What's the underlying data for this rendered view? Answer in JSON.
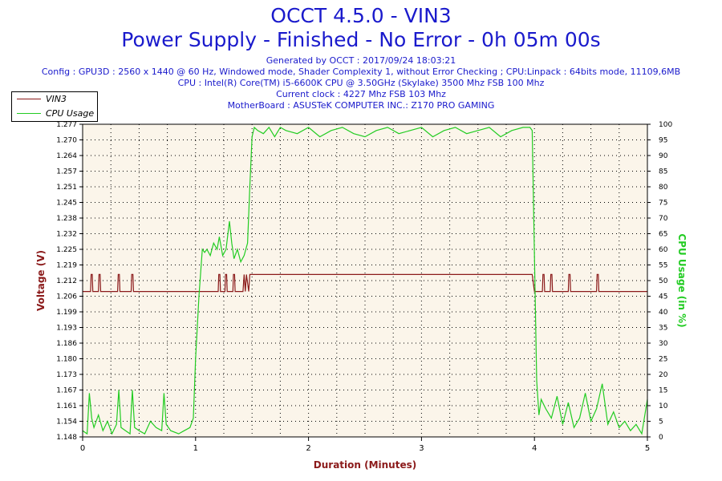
{
  "header": {
    "title": "OCCT 4.5.0 - VIN3",
    "subtitle": "Power Supply - Finished - No Error - 0h 05m 00s",
    "info_lines": [
      "Generated by OCCT : 2017/09/24 18:03:21",
      "Config : GPU3D : 2560 x 1440 @ 60 Hz, Windowed mode, Shader Complexity 1, without Error Checking ; CPU:Linpack : 64bits mode, 11109,6MB",
      "CPU : Intel(R) Core(TM) i5-6600K CPU @ 3.50GHz (Skylake) 3500 Mhz FSB 100 Mhz",
      "Current clock : 4227 Mhz FSB 103 Mhz",
      "MotherBoard : ASUSTeK COMPUTER INC.: Z170 PRO GAMING"
    ]
  },
  "colors": {
    "title": "#1a1acc",
    "vin3": "#8b1a1a",
    "cpu": "#22cc22",
    "plot_bg": "#fbf5ea",
    "axis_label_left": "#8b1a1a",
    "axis_label_right": "#22cc22"
  },
  "chart_data": {
    "type": "line",
    "xlabel": "Duration (Minutes)",
    "ylabel_left": "Voltage (V)",
    "ylabel_right": "CPU Usage (in %)",
    "xlim": [
      0,
      5
    ],
    "ylim_left": [
      1.148,
      1.277
    ],
    "ylim_right": [
      0,
      100
    ],
    "x_ticks": [
      "0",
      "1",
      "2",
      "3",
      "4",
      "5"
    ],
    "y_left_ticks": [
      "1.148",
      "1.154",
      "1.161",
      "1.167",
      "1.173",
      "1.180",
      "1.186",
      "1.193",
      "1.199",
      "1.206",
      "1.212",
      "1.219",
      "1.225",
      "1.232",
      "1.238",
      "1.245",
      "1.251",
      "1.257",
      "1.264",
      "1.270",
      "1.277"
    ],
    "y_right_ticks": [
      "0",
      "5",
      "10",
      "15",
      "20",
      "25",
      "30",
      "35",
      "40",
      "45",
      "50",
      "55",
      "60",
      "65",
      "70",
      "75",
      "80",
      "85",
      "90",
      "95",
      "100"
    ],
    "grid": true,
    "legend_position": "top-left",
    "series": [
      {
        "name": "VIN3",
        "axis": "left",
        "x": [
          0,
          0.07,
          0.075,
          0.085,
          0.09,
          0.14,
          0.145,
          0.155,
          0.16,
          0.31,
          0.315,
          0.325,
          0.33,
          0.43,
          0.435,
          0.445,
          0.45,
          1.2,
          1.205,
          1.215,
          1.22,
          1.26,
          1.265,
          1.275,
          1.28,
          1.33,
          1.335,
          1.345,
          1.35,
          1.42,
          1.43,
          1.44,
          1.45,
          1.47,
          1.48,
          3.98,
          4.0,
          4.07,
          4.075,
          4.085,
          4.09,
          4.14,
          4.145,
          4.155,
          4.16,
          4.3,
          4.305,
          4.315,
          4.32,
          4.55,
          4.555,
          4.565,
          4.57,
          5
        ],
        "y": [
          1.208,
          1.208,
          1.215,
          1.215,
          1.208,
          1.208,
          1.215,
          1.215,
          1.208,
          1.208,
          1.215,
          1.215,
          1.208,
          1.208,
          1.215,
          1.215,
          1.208,
          1.208,
          1.215,
          1.215,
          1.208,
          1.208,
          1.215,
          1.215,
          1.208,
          1.208,
          1.215,
          1.215,
          1.208,
          1.208,
          1.215,
          1.208,
          1.215,
          1.208,
          1.215,
          1.215,
          1.208,
          1.208,
          1.215,
          1.215,
          1.208,
          1.208,
          1.215,
          1.215,
          1.208,
          1.208,
          1.215,
          1.215,
          1.208,
          1.208,
          1.215,
          1.215,
          1.208,
          1.208
        ]
      },
      {
        "name": "CPU Usage",
        "axis": "right",
        "x": [
          0,
          0.04,
          0.06,
          0.08,
          0.1,
          0.14,
          0.18,
          0.22,
          0.26,
          0.3,
          0.32,
          0.34,
          0.38,
          0.42,
          0.44,
          0.46,
          0.5,
          0.55,
          0.6,
          0.65,
          0.7,
          0.72,
          0.74,
          0.78,
          0.85,
          0.9,
          0.95,
          0.98,
          1.0,
          1.03,
          1.06,
          1.08,
          1.1,
          1.13,
          1.16,
          1.19,
          1.21,
          1.24,
          1.27,
          1.3,
          1.32,
          1.34,
          1.37,
          1.4,
          1.43,
          1.46,
          1.48,
          1.5,
          1.52,
          1.55,
          1.6,
          1.65,
          1.7,
          1.75,
          1.8,
          1.9,
          2.0,
          2.1,
          2.2,
          2.3,
          2.4,
          2.5,
          2.6,
          2.7,
          2.8,
          2.9,
          3.0,
          3.1,
          3.2,
          3.3,
          3.4,
          3.5,
          3.6,
          3.7,
          3.8,
          3.9,
          3.96,
          3.98,
          4.0,
          4.02,
          4.04,
          4.06,
          4.1,
          4.15,
          4.2,
          4.25,
          4.3,
          4.35,
          4.4,
          4.45,
          4.5,
          4.55,
          4.6,
          4.65,
          4.7,
          4.75,
          4.8,
          4.85,
          4.9,
          4.95,
          5.0
        ],
        "y": [
          2,
          1,
          14,
          6,
          3,
          7,
          2,
          5,
          1,
          4,
          15,
          3,
          2,
          1,
          15,
          3,
          2,
          1,
          5,
          3,
          2,
          14,
          4,
          2,
          1,
          2,
          3,
          6,
          25,
          45,
          60,
          59,
          60,
          58,
          62,
          60,
          64,
          58,
          60,
          69,
          62,
          57,
          60,
          56,
          58,
          62,
          80,
          96,
          99,
          98,
          97,
          99,
          96,
          99,
          98,
          97,
          99,
          96,
          98,
          99,
          97,
          96,
          98,
          99,
          97,
          98,
          99,
          96,
          98,
          99,
          97,
          98,
          99,
          96,
          98,
          99,
          99,
          98,
          58,
          18,
          7,
          12,
          9,
          6,
          13,
          4,
          11,
          3,
          6,
          14,
          5,
          9,
          17,
          4,
          8,
          3,
          5,
          2,
          4,
          1,
          12
        ]
      }
    ]
  }
}
